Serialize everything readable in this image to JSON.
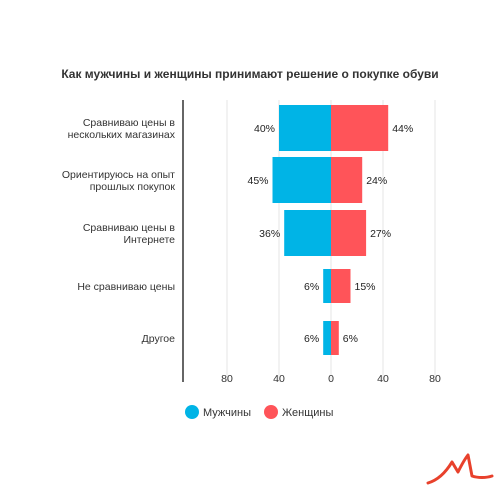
{
  "chart_data": {
    "type": "bar",
    "title": "Как мужчины и женщины принимают решение о покупке обуви",
    "categories": [
      [
        "Сравниваю цены в",
        "нескольких магазинах"
      ],
      [
        "Ориентируюсь на опыт",
        "прошлых покупок"
      ],
      [
        "Сравниваю цены в",
        "Интернете"
      ],
      [
        "Не сравниваю цены"
      ],
      [
        "Другое"
      ]
    ],
    "series": [
      {
        "name": "Мужчины",
        "values": [
          40,
          45,
          36,
          6,
          6
        ],
        "labels": [
          "40%",
          "45%",
          "36%",
          "6%",
          "6%"
        ],
        "color": "#00b4e6",
        "direction": "left"
      },
      {
        "name": "Женщины",
        "values": [
          44,
          24,
          27,
          15,
          6
        ],
        "labels": [
          "44%",
          "24%",
          "27%",
          "15%",
          "6%"
        ],
        "color": "#ff5459",
        "direction": "right"
      }
    ],
    "x_ticks": [
      "80",
      "40",
      "0",
      "40",
      "80"
    ],
    "xlim": [
      -80,
      80
    ],
    "grid": true,
    "legend_position": "bottom"
  },
  "colors": {
    "logo": "#e8412c"
  }
}
